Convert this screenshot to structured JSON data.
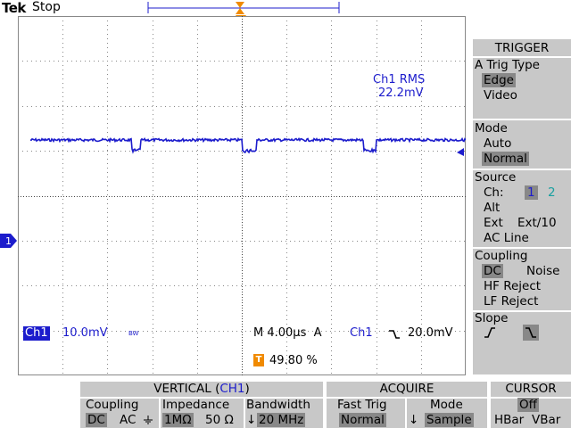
{
  "top": {
    "brand": "Tek",
    "status": "Stop"
  },
  "colors": {
    "ch1": "#1c1ccc",
    "trigger_marker": "#f08a00",
    "menu_bg": "#c8c8c8",
    "selected_bg": "#888888"
  },
  "screen": {
    "measurement": {
      "label": "Ch1 RMS",
      "value": "22.2mV"
    },
    "ch1_marker": "1",
    "trigger_marker": "T",
    "ch1_label": "Ch1",
    "ch1_scale": "10.0mV",
    "bw_mark": "BW",
    "timebase": "M 4.00µs",
    "acq_mode": "A",
    "trigger_source": "Ch1",
    "trigger_slope_icon": "falling-edge-icon",
    "trigger_level": "20.0mV",
    "trigger_position_label": "T",
    "trigger_position": "49.80 %"
  },
  "trigger_menu": {
    "title": "TRIGGER",
    "trig_type": {
      "label": "A Trig Type",
      "options": [
        "Edge",
        "Video"
      ],
      "selected": "Edge"
    },
    "mode": {
      "label": "Mode",
      "options": [
        "Auto",
        "Normal"
      ],
      "selected": "Normal"
    },
    "source": {
      "label": "Source",
      "ch_label": "Ch:",
      "ch1": "1",
      "ch2": "2",
      "alt": "Alt",
      "ext": "Ext",
      "ext10": "Ext/10",
      "ac_line": "AC Line"
    },
    "coupling": {
      "label": "Coupling",
      "dc": "DC",
      "noise": "Noise",
      "hf": "HF Reject",
      "lf": "LF Reject"
    },
    "slope": {
      "label": "Slope"
    }
  },
  "bottom": {
    "vertical": {
      "title_prefix": "VERTICAL (",
      "title_ch": "CH1",
      "title_suffix": ")",
      "coupling": {
        "label": "Coupling",
        "dc": "DC",
        "ac": "AC"
      },
      "impedance": {
        "label": "Impedance",
        "one_meg": "1MΩ",
        "fifty": "50 Ω"
      },
      "bandwidth": {
        "label": "Bandwidth",
        "value": "20 MHz"
      }
    },
    "acquire": {
      "title": "ACQUIRE",
      "fast_trig": {
        "label": "Fast Trig",
        "value": "Normal"
      },
      "mode": {
        "label": "Mode",
        "value": "Sample"
      }
    },
    "cursor": {
      "title": "CURSOR",
      "off": "Off",
      "hbar": "HBar",
      "vbar": "VBar"
    }
  }
}
